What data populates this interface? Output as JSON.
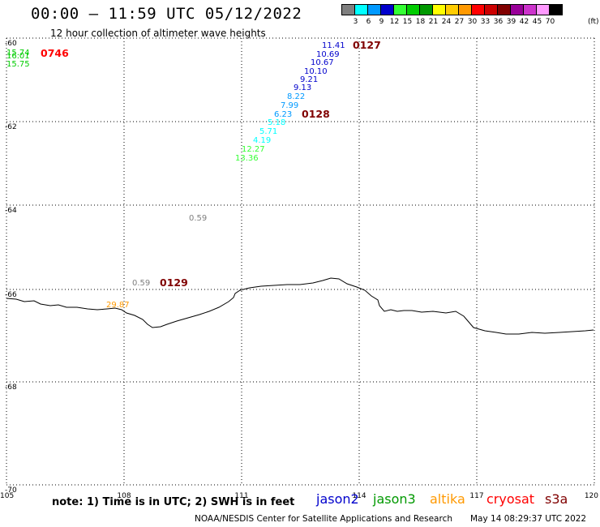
{
  "header": {
    "title": "00:00 – 11:59 UTC 05/12/2022",
    "subtitle": "12 hour collection of altimeter wave heights"
  },
  "legend": {
    "unit": "(ft)",
    "bins": [
      {
        "label": "3",
        "color": "#7f7f7f"
      },
      {
        "label": "6",
        "color": "#00ffff"
      },
      {
        "label": "9",
        "color": "#0099ff"
      },
      {
        "label": "12",
        "color": "#0000cc"
      },
      {
        "label": "15",
        "color": "#33ff33"
      },
      {
        "label": "18",
        "color": "#00cc00"
      },
      {
        "label": "21",
        "color": "#009900"
      },
      {
        "label": "24",
        "color": "#ffff00"
      },
      {
        "label": "27",
        "color": "#ffcc00"
      },
      {
        "label": "30",
        "color": "#ff9900"
      },
      {
        "label": "33",
        "color": "#ff0000"
      },
      {
        "label": "36",
        "color": "#cc0000"
      },
      {
        "label": "39",
        "color": "#800000"
      },
      {
        "label": "42",
        "color": "#990099"
      },
      {
        "label": "45",
        "color": "#cc33cc"
      },
      {
        "label": "70",
        "color": "#ff99ff"
      },
      {
        "label": "",
        "color": "#000000"
      }
    ]
  },
  "map": {
    "lon_ticks": [
      "105",
      "108",
      "111",
      "114",
      "117",
      "120"
    ],
    "lat_ticks": [
      "-60",
      "-62",
      "-64",
      "-66",
      "-68",
      "-70"
    ],
    "lon_range": [
      105,
      120
    ],
    "lat_range": [
      -60,
      -70
    ],
    "grid": "dotted"
  },
  "passes": [
    {
      "time": "0746",
      "color": "#ff0000"
    },
    {
      "time": "0127",
      "color": "#800000"
    },
    {
      "time": "0128",
      "color": "#800000"
    },
    {
      "time": "0129",
      "color": "#800000"
    }
  ],
  "observations": [
    {
      "value": "15.74",
      "color": "#00cc00"
    },
    {
      "value": "16.01",
      "color": "#00cc00"
    },
    {
      "value": "15.75",
      "color": "#00cc00"
    },
    {
      "value": "11.41",
      "color": "#0000cc"
    },
    {
      "value": "10.69",
      "color": "#0000cc"
    },
    {
      "value": "10.67",
      "color": "#0000cc"
    },
    {
      "value": "10.10",
      "color": "#0000cc"
    },
    {
      "value": "9.21",
      "color": "#0000cc"
    },
    {
      "value": "9.13",
      "color": "#0000cc"
    },
    {
      "value": "8.22",
      "color": "#0099ff"
    },
    {
      "value": "7.99",
      "color": "#0099ff"
    },
    {
      "value": "6.23",
      "color": "#0099ff"
    },
    {
      "value": "5.18",
      "color": "#00ffff"
    },
    {
      "value": "5.71",
      "color": "#00ffff"
    },
    {
      "value": "4.19",
      "color": "#00ffff"
    },
    {
      "value": "12.27",
      "color": "#33ff33"
    },
    {
      "value": "13.36",
      "color": "#33ff33"
    },
    {
      "value": "0.59",
      "color": "#7f7f7f"
    },
    {
      "value": "0.59",
      "color": "#7f7f7f"
    },
    {
      "value": "29.87",
      "color": "#ff9900"
    }
  ],
  "footer": {
    "note": "note: 1) Time is in UTC; 2) SWH is in feet",
    "satellites": [
      {
        "name": "jason2",
        "color": "#0000cc"
      },
      {
        "name": "jason3",
        "color": "#009900"
      },
      {
        "name": "altika",
        "color": "#ff9900"
      },
      {
        "name": "cryosat",
        "color": "#ff0000"
      },
      {
        "name": "s3a",
        "color": "#800000"
      }
    ],
    "credit": "NOAA/NESDIS Center for Satellite Applications and Research",
    "timestamp": "May 14 08:29:37 UTC 2022"
  }
}
